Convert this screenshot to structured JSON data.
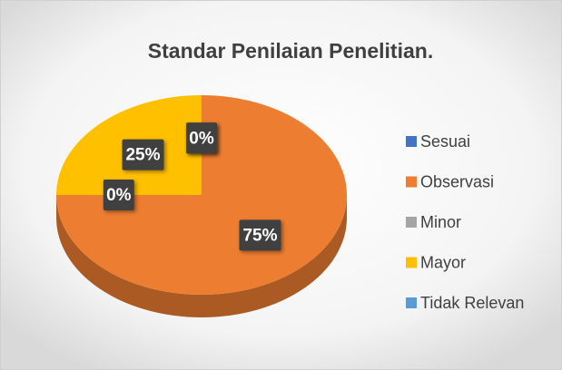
{
  "chart_data": {
    "type": "pie3d",
    "title": "Standar Penilaian Penelitian.",
    "categories": [
      "Sesuai",
      "Observasi",
      "Minor",
      "Mayor",
      "Tidak Relevan"
    ],
    "values": [
      0,
      75,
      0,
      25,
      0
    ],
    "value_labels": [
      "0%",
      "75%",
      "0%",
      "25%",
      "0%"
    ],
    "colors": [
      "#4472c4",
      "#ed7d31",
      "#a5a5a5",
      "#ffc000",
      "#5b9bd5"
    ],
    "legend": "right"
  }
}
